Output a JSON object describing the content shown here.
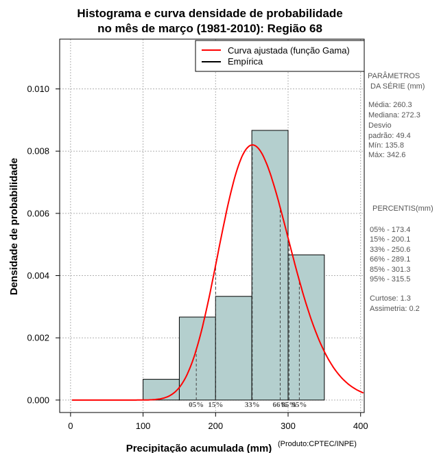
{
  "chart_data": {
    "type": "bar",
    "title_line1": "Histograma e curva densidade de probabilidade",
    "title_line2": "no mês de março (1981-2010): Região 68",
    "xlabel": "Precipitação acumulada (mm)",
    "ylabel": "Densidade de probabilidade",
    "credit": "(Produto:CPTEC/INPE)",
    "xlim": [
      -15,
      405
    ],
    "ylim": [
      -0.0004,
      0.0116
    ],
    "x_ticks": [
      0,
      100,
      200,
      300,
      400
    ],
    "x_tick_labels": [
      "0",
      "100",
      "200",
      "300",
      "400"
    ],
    "y_ticks": [
      0.0,
      0.002,
      0.004,
      0.006,
      0.008,
      0.01
    ],
    "y_tick_labels": [
      "0.000",
      "0.002",
      "0.004",
      "0.006",
      "0.008",
      "0.010"
    ],
    "grid": true,
    "bins": [
      {
        "start": 100,
        "end": 150,
        "density": 0.000667
      },
      {
        "start": 150,
        "end": 200,
        "density": 0.002667
      },
      {
        "start": 200,
        "end": 250,
        "density": 0.003333
      },
      {
        "start": 250,
        "end": 300,
        "density": 0.008667
      },
      {
        "start": 300,
        "end": 350,
        "density": 0.004667
      }
    ],
    "gamma_curve": {
      "name": "Curva ajustada (função Gama)",
      "mean": 260.3,
      "sd": 49.4,
      "color": "#ff0000"
    },
    "legend": [
      {
        "label": "Curva ajustada (função Gama)",
        "color": "#ff0000"
      },
      {
        "label": "Empírica",
        "color": "#000000"
      }
    ],
    "legend_position": "top-right",
    "percentile_markers": [
      {
        "label": "05%",
        "value": 173.4
      },
      {
        "label": "15%",
        "value": 200.1
      },
      {
        "label": "33%",
        "value": 250.6
      },
      {
        "label": "66%",
        "value": 289.1
      },
      {
        "label": "85%",
        "value": 301.3
      },
      {
        "label": "95%",
        "value": 315.5
      }
    ]
  },
  "stats_panel": {
    "params_title_1": "PARÂMETROS",
    "params_title_2": "DA SÉRIE (mm)",
    "media": "Média:  260.3",
    "mediana": "Mediana:  272.3",
    "desvio_1": "Desvio",
    "desvio_2": "padrão:  49.4",
    "min": "Mín:  135.8",
    "max": "Máx:  342.6",
    "percentis_title": "PERCENTIS(mm)",
    "p05": "05% -  173.4",
    "p15": "15% -  200.1",
    "p33": "33% -  250.6",
    "p66": "66% -  289.1",
    "p85": "85% -  301.3",
    "p95": "95% -  315.5",
    "curtose": "Curtose:  1.3",
    "assimetria": "Assimetria:  0.2"
  },
  "colors": {
    "bar_fill": "#b4cfce",
    "curve": "#ff0000",
    "grid": "#b0b0b0"
  }
}
